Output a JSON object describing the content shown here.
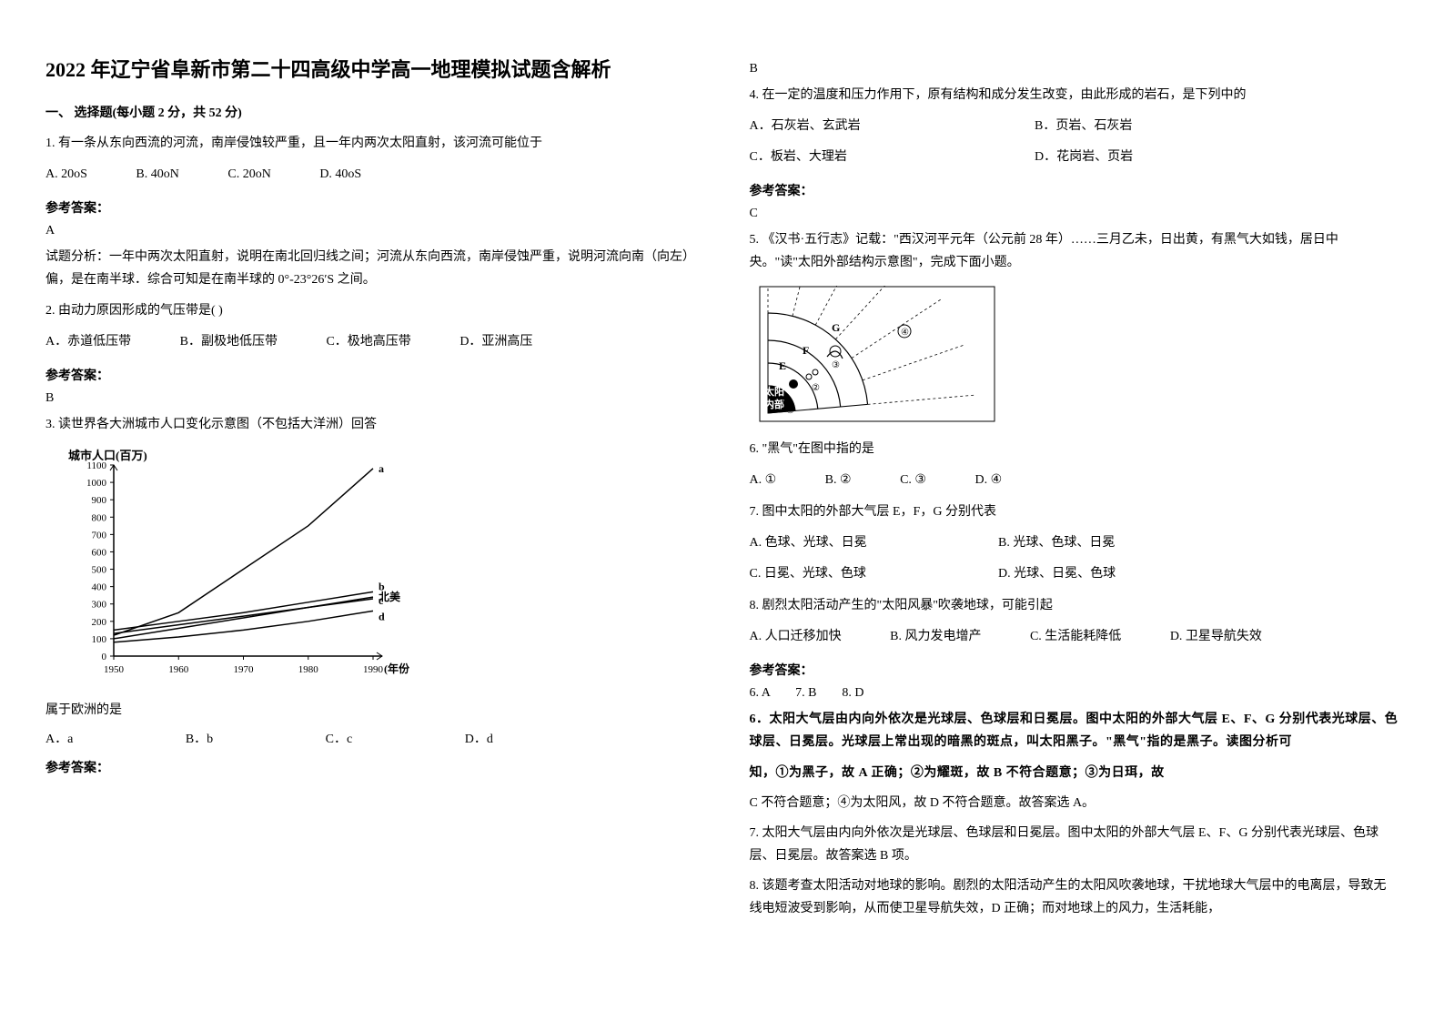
{
  "left": {
    "title": "2022 年辽宁省阜新市第二十四高级中学高一地理模拟试题含解析",
    "section1": "一、 选择题(每小题 2 分，共 52 分)",
    "q1": {
      "stem": "1. 有一条从东向西流的河流，南岸侵蚀较严重，且一年内两次太阳直射，该河流可能位于",
      "opts": [
        "A. 20oS",
        "B. 40oN",
        "C. 20oN",
        "D. 40oS"
      ],
      "answerLabel": "参考答案：",
      "answer": "A",
      "analysis": "试题分析：一年中两次太阳直射，说明在南北回归线之间；河流从东向西流，南岸侵蚀严重，说明河流向南（向左）偏，是在南半球．综合可知是在南半球的 0°-23°26′S 之间。"
    },
    "q2": {
      "stem": "2. 由动力原因形成的气压带是(    )",
      "opts": [
        "A．赤道低压带",
        "B．副极地低压带",
        "C．极地高压带",
        "D．亚洲高压"
      ],
      "answerLabel": "参考答案：",
      "answer": "B"
    },
    "q3": {
      "stem": "3. 读世界各大洲城市人口变化示意图（不包括大洋洲）回答",
      "chart": {
        "ylabel": "城市人口(百万)",
        "xlabel": "(年份)",
        "ymin": 0,
        "ymax": 1100,
        "ystep": 100,
        "xticks": [
          1950,
          1960,
          1970,
          1980,
          1990
        ],
        "series": {
          "a": [
            120,
            250,
            500,
            750,
            1080
          ],
          "b": [
            150,
            200,
            250,
            310,
            370
          ],
          "northAmerica": [
            130,
            180,
            230,
            280,
            330
          ],
          "c": [
            100,
            160,
            220,
            280,
            340
          ],
          "d": [
            80,
            110,
            150,
            200,
            260
          ]
        },
        "labels": {
          "a": "a",
          "b": "b",
          "north": "北美",
          "c": "c",
          "d": "d"
        },
        "lineColor": "#000000",
        "textColor": "#000000",
        "axisColor": "#000000"
      },
      "sub": "属于欧洲的是",
      "opts": [
        "A．a",
        "B．b",
        "C．c",
        "D．d"
      ],
      "answerLabel": "参考答案："
    }
  },
  "right": {
    "q3answer": "B",
    "q4": {
      "stem": "4. 在一定的温度和压力作用下，原有结构和成分发生改变，由此形成的岩石，是下列中的",
      "optsRow1": [
        "A．石灰岩、玄武岩",
        "B．页岩、石灰岩"
      ],
      "optsRow2": [
        "C．板岩、大理岩",
        "D．花岗岩、页岩"
      ],
      "answerLabel": "参考答案：",
      "answer": "C"
    },
    "q5": {
      "stem": "5. 《汉书·五行志》记载：\"西汉河平元年（公元前 28 年）……三月乙未，日出黄，有黑气大如钱，居日中央。\"读\"太阳外部结构示意图\"，完成下面小题。",
      "diagram": {
        "labels": {
          "sun": "太阳",
          "inner": "内部",
          "E": "E",
          "F": "F",
          "G": "G"
        },
        "nums": [
          "①",
          "②",
          "③",
          "④"
        ],
        "lineColor": "#000000",
        "fillColor": "#ffffff"
      },
      "sub6": "6. \"黑气\"在图中指的是",
      "opts6": [
        "A. ①",
        "B. ②",
        "C. ③",
        "D. ④"
      ],
      "sub7": "7. 图中太阳的外部大气层 E，F，G 分别代表",
      "opts7row1": [
        "A. 色球、光球、日冕",
        "B. 光球、色球、日冕"
      ],
      "opts7row2": [
        "C. 日冕、光球、色球",
        "D. 光球、日冕、色球"
      ],
      "sub8": "8. 剧烈太阳活动产生的\"太阳风暴\"吹袭地球，可能引起",
      "opts8": [
        "A. 人口迁移加快",
        "B. 风力发电增产",
        "C. 生活能耗降低",
        "D. 卫星导航失效"
      ],
      "answerLabel": "参考答案：",
      "answers": "6. A        7. B        8. D",
      "an6": "6．太阳大气层由内向外依次是光球层、色球层和日冕层。图中太阳的外部大气层 E、F、G 分别代表光球层、色球层、日冕层。光球层上常出现的暗黑的斑点，叫太阳黑子。\"黑气\"指的是黑子。读图分析可",
      "an6b": "知，①为黑子，故 A 正确；②为耀斑，故 B 不符合题意；③为日珥，故",
      "an6c": "C 不符合题意；④为太阳风，故 D 不符合题意。故答案选 A。",
      "an7": "7. 太阳大气层由内向外依次是光球层、色球层和日冕层。图中太阳的外部大气层 E、F、G 分别代表光球层、色球层、日冕层。故答案选 B 项。",
      "an8": "8. 该题考查太阳活动对地球的影响。剧烈的太阳活动产生的太阳风吹袭地球，干扰地球大气层中的电离层，导致无线电短波受到影响，从而使卫星导航失效，D 正确；而对地球上的风力，生活耗能，"
    }
  }
}
